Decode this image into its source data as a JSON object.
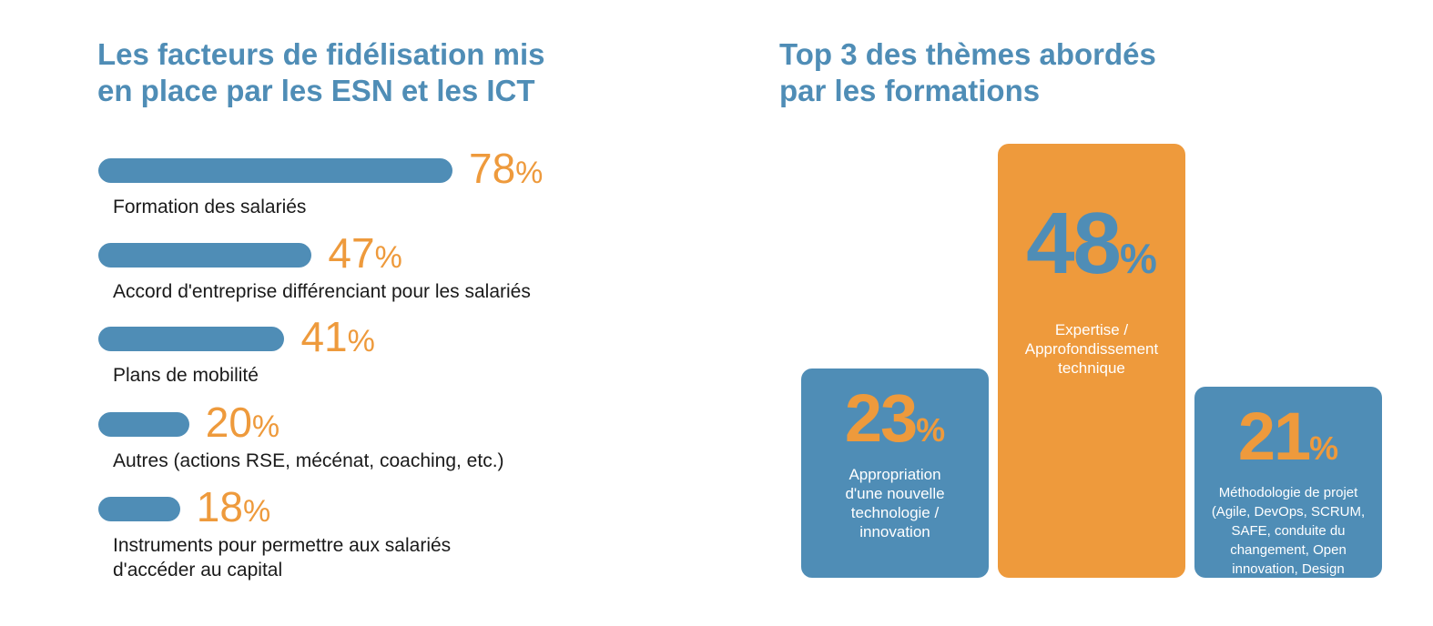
{
  "left": {
    "title": "Les facteurs de fidélisation mis\nen place par les ESN et les ICT"
  },
  "right": {
    "title": "Top 3 des thèmes abordés\npar les formations"
  },
  "chart_data": [
    {
      "type": "bar",
      "orientation": "horizontal",
      "title": "Les facteurs de fidélisation mis en place par les ESN et les ICT",
      "categories": [
        "Formation des salariés",
        "Accord d'entreprise différenciant pour les salariés",
        "Plans de mobilité",
        "Autres (actions RSE, mécénat, coaching, etc.)",
        "Instruments pour permettre aux salariés\nd'accéder au capital"
      ],
      "values": [
        78,
        47,
        41,
        20,
        18
      ],
      "value_labels": [
        "78",
        "47",
        "41",
        "20",
        "18"
      ],
      "unit": "%",
      "colors": {
        "bar": "#4f8db6",
        "value": "#ee9a3c",
        "label": "#1a1a1a"
      }
    },
    {
      "type": "bar",
      "orientation": "vertical",
      "title": "Top 3 des thèmes abordés par les formations",
      "categories": [
        "Appropriation\nd'une nouvelle\ntechnologie /\ninnovation",
        "Expertise /\nApprofondissement\ntechnique",
        "Méthodologie de projet\n(Agile, DevOps, SCRUM,\nSAFE, conduite du\nchangement, Open\ninnovation, Design\nthinking, etc.)"
      ],
      "values": [
        23,
        48,
        21
      ],
      "value_labels": [
        "23",
        "48",
        "21"
      ],
      "unit": "%",
      "colors": {
        "highlight": "#ee9a3c",
        "other": "#4f8db6",
        "text_on_highlight": "#4f8db6",
        "text_on_other": "#ee9a3c"
      }
    }
  ]
}
